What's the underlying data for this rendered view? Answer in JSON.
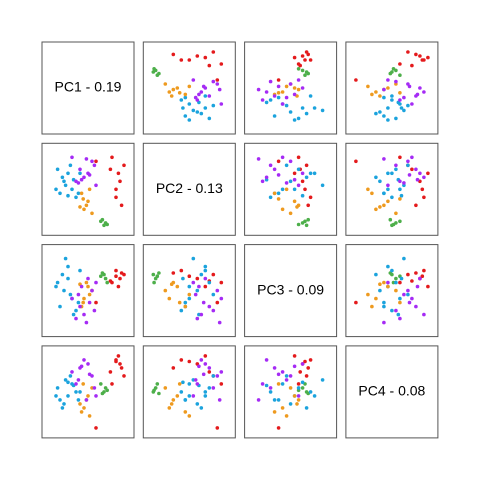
{
  "chart_data": {
    "type": "pairs",
    "variables": [
      "PC1 - 0.19",
      "PC2 - 0.13",
      "PC3 - 0.09",
      "PC4 - 0.08"
    ],
    "lim": [
      0,
      100
    ],
    "series": [
      {
        "color": "#e41a1c",
        "values": [
          [
            90,
            60,
            65,
            85
          ],
          [
            95,
            80,
            70,
            70
          ],
          [
            85,
            40,
            75,
            90
          ],
          [
            80,
            90,
            60,
            60
          ],
          [
            92,
            30,
            72,
            80
          ],
          [
            88,
            70,
            55,
            95
          ],
          [
            85,
            50,
            68,
            88
          ],
          [
            78,
            75,
            62,
            75
          ],
          [
            60,
            85,
            35,
            5
          ]
        ]
      },
      {
        "color": "#4daf4a",
        "values": [
          [
            70,
            5,
            70,
            50
          ],
          [
            72,
            8,
            65,
            55
          ],
          [
            68,
            12,
            72,
            48
          ],
          [
            74,
            6,
            60,
            52
          ],
          [
            66,
            10,
            68,
            60
          ]
        ]
      },
      {
        "color": "#1ba3dd",
        "values": [
          [
            15,
            45,
            30,
            40
          ],
          [
            20,
            60,
            50,
            35
          ],
          [
            25,
            70,
            80,
            45
          ],
          [
            30,
            50,
            40,
            60
          ],
          [
            12,
            75,
            60,
            55
          ],
          [
            35,
            40,
            25,
            50
          ],
          [
            22,
            55,
            90,
            65
          ],
          [
            18,
            65,
            70,
            30
          ],
          [
            28,
            80,
            45,
            70
          ],
          [
            38,
            45,
            35,
            40
          ],
          [
            10,
            50,
            55,
            45
          ],
          [
            32,
            62,
            20,
            58
          ],
          [
            25,
            42,
            65,
            62
          ],
          [
            40,
            70,
            75,
            50
          ]
        ]
      },
      {
        "color": "#ee9a1f",
        "values": [
          [
            45,
            25,
            40,
            30
          ],
          [
            50,
            35,
            55,
            45
          ],
          [
            42,
            45,
            30,
            25
          ],
          [
            55,
            20,
            50,
            55
          ],
          [
            48,
            30,
            60,
            40
          ],
          [
            52,
            50,
            45,
            20
          ],
          [
            44,
            38,
            35,
            60
          ],
          [
            40,
            28,
            58,
            35
          ]
        ]
      },
      {
        "color": "#a52bf5",
        "values": [
          [
            35,
            60,
            15,
            60
          ],
          [
            40,
            75,
            30,
            80
          ],
          [
            55,
            85,
            50,
            70
          ],
          [
            45,
            65,
            20,
            90
          ],
          [
            60,
            55,
            60,
            45
          ],
          [
            30,
            90,
            40,
            75
          ],
          [
            50,
            70,
            65,
            85
          ],
          [
            58,
            80,
            25,
            55
          ],
          [
            38,
            58,
            45,
            65
          ],
          [
            48,
            88,
            10,
            40
          ],
          [
            42,
            62,
            55,
            82
          ],
          [
            52,
            68,
            35,
            72
          ]
        ]
      }
    ]
  }
}
